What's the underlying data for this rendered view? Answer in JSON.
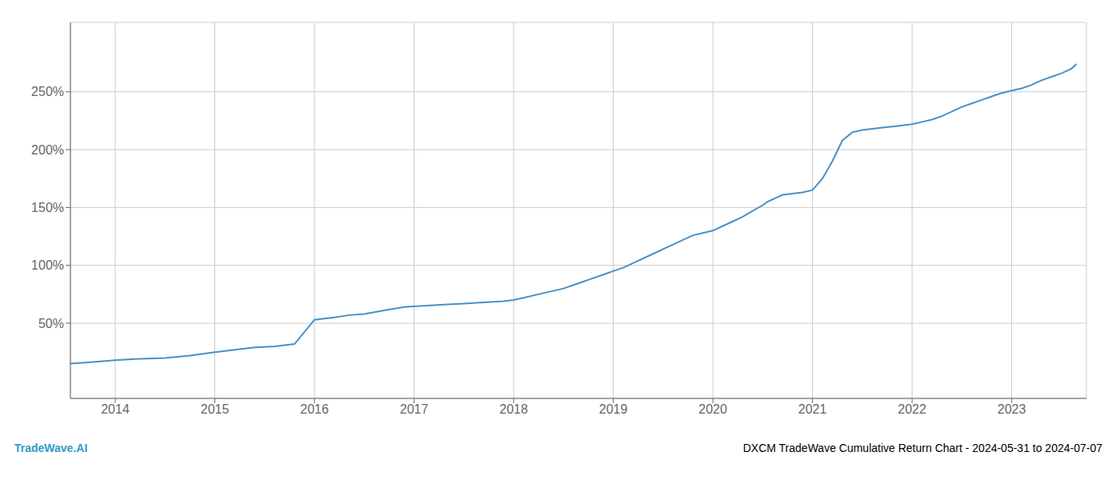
{
  "chart_data": {
    "type": "line",
    "title": "DXCM TradeWave Cumulative Return Chart - 2024-05-31 to 2024-07-07",
    "annotations": [
      {
        "text": "TradeWave.AI",
        "color": "#3399cc"
      }
    ],
    "x": [
      2013.55,
      2013.7,
      2013.85,
      2014.0,
      2014.2,
      2014.5,
      2014.75,
      2015.0,
      2015.2,
      2015.4,
      2015.6,
      2015.8,
      2016.0,
      2016.2,
      2016.35,
      2016.5,
      2016.7,
      2016.9,
      2017.1,
      2017.3,
      2017.5,
      2017.7,
      2017.9,
      2018.0,
      2018.1,
      2018.3,
      2018.5,
      2018.6,
      2018.7,
      2018.8,
      2018.9,
      2019.0,
      2019.1,
      2019.2,
      2019.4,
      2019.6,
      2019.7,
      2019.8,
      2019.9,
      2020.0,
      2020.1,
      2020.2,
      2020.3,
      2020.4,
      2020.5,
      2020.55,
      2020.6,
      2020.65,
      2020.7,
      2020.8,
      2020.9,
      2021.0,
      2021.1,
      2021.2,
      2021.3,
      2021.4,
      2021.5,
      2021.6,
      2021.7,
      2021.8,
      2021.9,
      2022.0,
      2022.1,
      2022.2,
      2022.3,
      2022.4,
      2022.5,
      2022.6,
      2022.7,
      2022.8,
      2022.9,
      2023.0,
      2023.1,
      2023.2,
      2023.3,
      2023.4,
      2023.5,
      2023.6,
      2023.65
    ],
    "values": [
      15,
      16,
      17,
      18,
      19,
      20,
      22,
      25,
      27,
      29,
      30,
      32,
      53,
      55,
      57,
      58,
      61,
      64,
      65,
      66,
      67,
      68,
      69,
      70,
      72,
      76,
      80,
      83,
      86,
      89,
      92,
      95,
      98,
      102,
      110,
      118,
      122,
      126,
      128,
      130,
      134,
      138,
      142,
      147,
      152,
      155,
      157,
      159,
      161,
      162,
      163,
      165,
      175,
      190,
      208,
      215,
      217,
      218,
      219,
      220,
      221,
      222,
      224,
      226,
      229,
      233,
      237,
      240,
      243,
      246,
      249,
      251,
      253,
      256,
      260,
      263,
      266,
      270,
      274
    ],
    "color": "#4a90c4",
    "xlim": [
      2013.55,
      2023.75
    ],
    "xticks": [
      2014,
      2015,
      2016,
      2017,
      2018,
      2019,
      2020,
      2021,
      2022,
      2023
    ],
    "ylim": [
      -15,
      310
    ],
    "yticks": [
      {
        "value": 50,
        "label": "50%"
      },
      {
        "value": 100,
        "label": "100%"
      },
      {
        "value": 150,
        "label": "150%"
      },
      {
        "value": 200,
        "label": "200%"
      },
      {
        "value": 250,
        "label": "250%"
      }
    ],
    "grid": true
  }
}
